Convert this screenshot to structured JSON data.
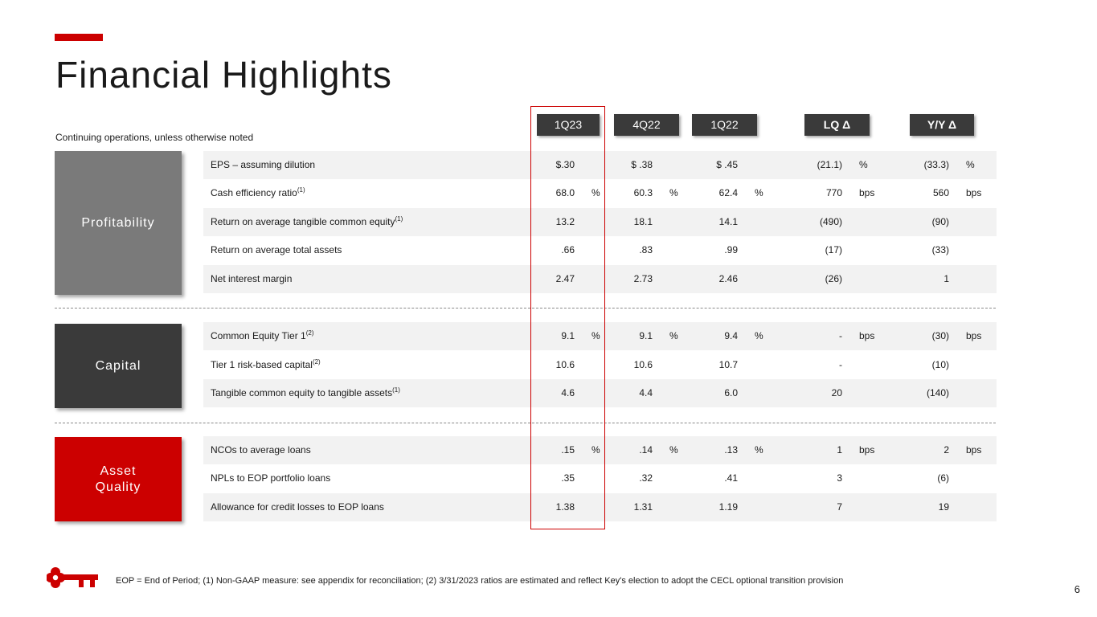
{
  "title": "Financial Highlights",
  "subtitle": "Continuing operations, unless otherwise noted",
  "columns": [
    "1Q23",
    "4Q22",
    "1Q22",
    "LQ Δ",
    "Y/Y Δ"
  ],
  "groups": {
    "profitability": "Profitability",
    "capital": "Capital",
    "asset_quality": "Asset\nQuality"
  },
  "rows": [
    {
      "label": "EPS – assuming dilution",
      "sup": "",
      "v": [
        "$.30",
        "$ .38",
        "$ .45",
        "(21.1)",
        "(33.3)"
      ],
      "u": [
        "",
        "",
        "",
        "%",
        "%"
      ]
    },
    {
      "label": "Cash efficiency ratio",
      "sup": "(1)",
      "v": [
        "68.0",
        "60.3",
        "62.4",
        "770",
        "560"
      ],
      "u": [
        "%",
        "%",
        "%",
        "bps",
        "bps"
      ]
    },
    {
      "label": "Return on average tangible common equity",
      "sup": "(1)",
      "v": [
        "13.2",
        "18.1",
        "14.1",
        "(490)",
        "(90)"
      ],
      "u": [
        "",
        "",
        "",
        "",
        ""
      ]
    },
    {
      "label": "Return on average total assets",
      "sup": "",
      "v": [
        ".66",
        ".83",
        ".99",
        "(17)",
        "(33)"
      ],
      "u": [
        "",
        "",
        "",
        "",
        ""
      ]
    },
    {
      "label": "Net interest margin",
      "sup": "",
      "v": [
        "2.47",
        "2.73",
        "2.46",
        "(26)",
        "1"
      ],
      "u": [
        "",
        "",
        "",
        "",
        ""
      ]
    },
    {
      "label": "Common Equity Tier 1",
      "sup": "(2)",
      "v": [
        "9.1",
        "9.1",
        "9.4",
        "-",
        "(30)"
      ],
      "u": [
        "%",
        "%",
        "%",
        "bps",
        "bps"
      ]
    },
    {
      "label": "Tier 1 risk-based capital",
      "sup": "(2)",
      "v": [
        "10.6",
        "10.6",
        "10.7",
        "-",
        "(10)"
      ],
      "u": [
        "",
        "",
        "",
        "",
        ""
      ]
    },
    {
      "label": "Tangible common equity to tangible assets",
      "sup": "(1)",
      "v": [
        "4.6",
        "4.4",
        "6.0",
        "20",
        "(140)"
      ],
      "u": [
        "",
        "",
        "",
        "",
        ""
      ]
    },
    {
      "label": "NCOs to average loans",
      "sup": "",
      "v": [
        ".15",
        ".14",
        ".13",
        "1",
        "2"
      ],
      "u": [
        "%",
        "%",
        "%",
        "bps",
        "bps"
      ]
    },
    {
      "label": "NPLs to EOP portfolio loans",
      "sup": "",
      "v": [
        ".35",
        ".32",
        ".41",
        "3",
        "(6)"
      ],
      "u": [
        "",
        "",
        "",
        "",
        ""
      ]
    },
    {
      "label": "Allowance for credit losses to EOP loans",
      "sup": "",
      "v": [
        "1.38",
        "1.31",
        "1.19",
        "7",
        "19"
      ],
      "u": [
        "",
        "",
        "",
        "",
        ""
      ]
    }
  ],
  "footnote": "EOP = End of Period; (1) Non-GAAP measure: see appendix for reconciliation; (2) 3/31/2023 ratios are estimated and reflect Key's election to adopt the CECL optional transition provision",
  "page_number": "6",
  "colors": {
    "accent": "#cc0000",
    "dark": "#3a3a3a",
    "gray": "#7a7a7a",
    "row_shade": "#f2f2f2"
  }
}
